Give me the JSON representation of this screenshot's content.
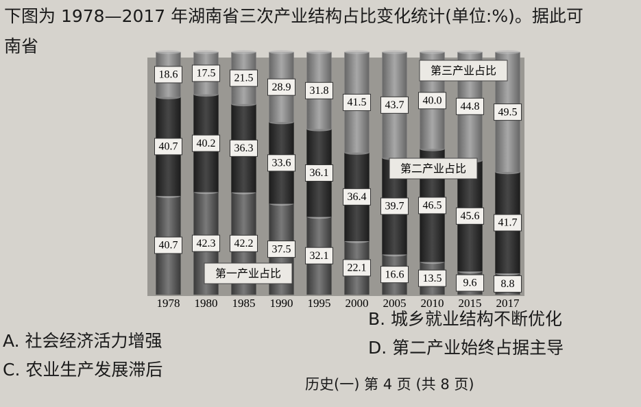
{
  "header": {
    "line1": "下图为 1978—2017 年湖南省三次产业结构占比变化统计(单位:%)。据此可",
    "line2": "南省"
  },
  "chart_data": {
    "type": "stacked-bar",
    "categories": [
      "1978",
      "1980",
      "1985",
      "1990",
      "1995",
      "2000",
      "2005",
      "2010",
      "2015",
      "2017"
    ],
    "ylim": [
      0,
      100
    ],
    "series": [
      {
        "name": "第一产业占比",
        "color": "#5a5a5a",
        "values": [
          40.7,
          42.3,
          42.2,
          37.5,
          32.1,
          22.1,
          16.6,
          13.5,
          9.6,
          8.8
        ]
      },
      {
        "name": "第二产业占比",
        "color": "#2e2e2e",
        "values": [
          40.7,
          40.2,
          36.3,
          33.6,
          36.1,
          36.4,
          39.7,
          46.5,
          45.6,
          41.7
        ]
      },
      {
        "name": "第三产业占比",
        "color": "#8a8a8a",
        "values": [
          18.6,
          17.5,
          21.5,
          28.9,
          31.8,
          41.5,
          43.7,
          40,
          44.8,
          49.5
        ],
        "value_labels": [
          "18.6",
          "17.5",
          "21.5",
          "28.9",
          "31.8",
          "41.5",
          "43.7",
          "40.0",
          "44.8",
          "49.5"
        ]
      }
    ]
  },
  "options": [
    "A. 社会经济活力增强",
    "B. 城乡就业结构不断优化",
    "C. 农业生产发展滞后",
    "D. 第二产业始终占据主导"
  ],
  "footer": "历史(一) 第 4 页 (共 8 页)"
}
